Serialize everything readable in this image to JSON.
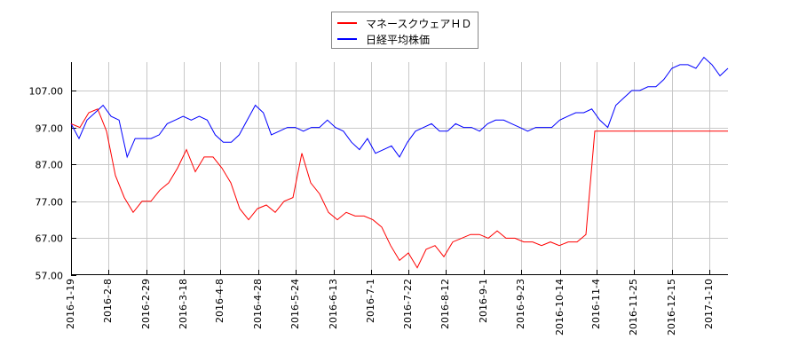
{
  "legend": {
    "items": [
      {
        "label": "マネースクウェアＨＤ",
        "color": "#ff0000"
      },
      {
        "label": "日経平均株価",
        "color": "#0000ff"
      }
    ]
  },
  "chart_data": {
    "type": "line",
    "title": "",
    "xlabel": "",
    "ylabel": "",
    "ylim": [
      57,
      117
    ],
    "grid": true,
    "legend_position": "top-center",
    "y_ticks": [
      "57.00",
      "67.00",
      "77.00",
      "87.00",
      "97.00",
      "107.00"
    ],
    "x_ticks": [
      "2016-1-19",
      "2016-2-8",
      "2016-2-29",
      "2016-3-18",
      "2016-4-8",
      "2016-4-28",
      "2016-5-24",
      "2016-6-13",
      "2016-7-1",
      "2016-7-22",
      "2016-8-12",
      "2016-9-1",
      "2016-9-23",
      "2016-10-14",
      "2016-11-4",
      "2016-11-25",
      "2016-12-15",
      "2017-1-10"
    ],
    "x_note": "values sampled every ~10px (~5 calendar days) from 2016-1-19 to 2017-1-19",
    "series": [
      {
        "name": "マネースクウェアＨＤ",
        "color": "#ff0000",
        "values": [
          98,
          97,
          101,
          102,
          96,
          84,
          78,
          74,
          77,
          77,
          80,
          82,
          86,
          91,
          85,
          89,
          89,
          86,
          82,
          75,
          72,
          75,
          76,
          74,
          77,
          78,
          90,
          82,
          79,
          74,
          72,
          74,
          73,
          73,
          72,
          70,
          65,
          61,
          63,
          59,
          64,
          65,
          62,
          66,
          67,
          68,
          68,
          67,
          69,
          67,
          67,
          66,
          66,
          65,
          66,
          65,
          66,
          66,
          68,
          96,
          96,
          96,
          96,
          96,
          96,
          96,
          96,
          96,
          96,
          96,
          96,
          96,
          96,
          96,
          96
        ]
      },
      {
        "name": "日経平均株価",
        "color": "#0000ff",
        "values": [
          98,
          94,
          99,
          101,
          103,
          100,
          99,
          89,
          94,
          94,
          94,
          95,
          98,
          99,
          100,
          99,
          100,
          99,
          95,
          93,
          93,
          95,
          99,
          103,
          101,
          95,
          96,
          97,
          97,
          96,
          97,
          97,
          99,
          97,
          96,
          93,
          91,
          94,
          90,
          91,
          92,
          89,
          93,
          96,
          97,
          98,
          96,
          96,
          98,
          97,
          97,
          96,
          98,
          99,
          99,
          98,
          97,
          96,
          97,
          97,
          97,
          99,
          100,
          101,
          101,
          102,
          99,
          97,
          103,
          105,
          107,
          107,
          108,
          108,
          110,
          113,
          114,
          114,
          113,
          116,
          114,
          111,
          113
        ]
      }
    ]
  }
}
